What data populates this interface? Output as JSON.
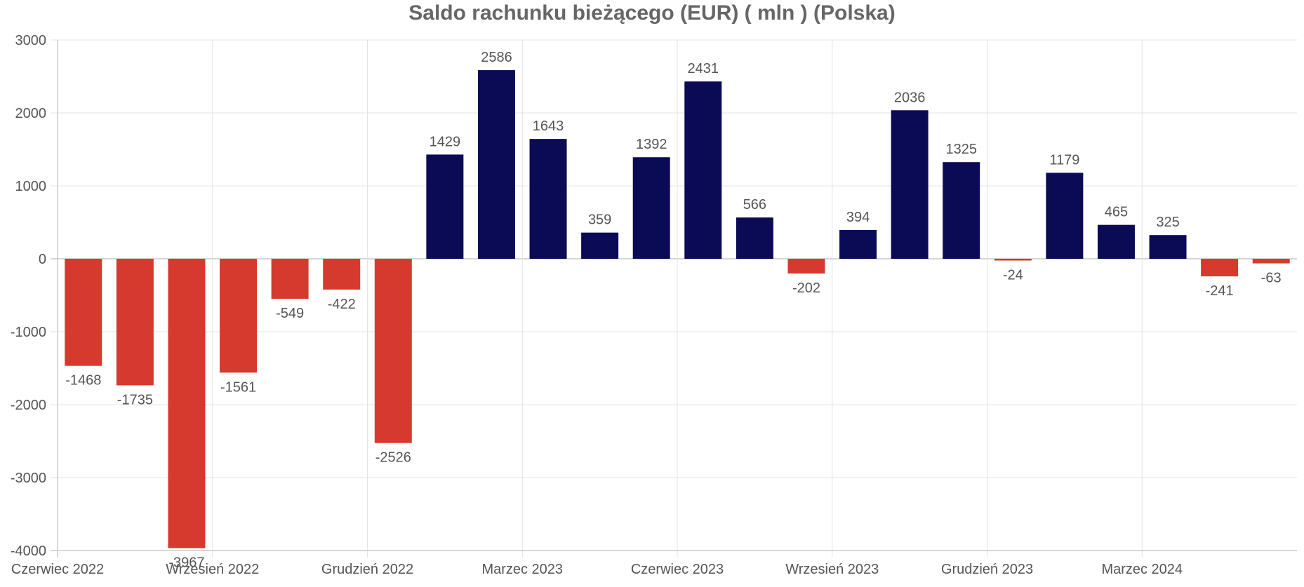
{
  "chart_data": {
    "type": "bar",
    "title": "Saldo rachunku bieżącego (EUR) ( mln ) (Polska)",
    "xlabel": "",
    "ylabel": "",
    "ylim": [
      -4000,
      3000
    ],
    "yticks": [
      3000,
      2000,
      1000,
      0,
      -1000,
      -2000,
      -3000,
      -4000
    ],
    "grid": true,
    "legend": "none",
    "categories": [
      "2022-06",
      "2022-07",
      "2022-08",
      "2022-09",
      "2022-10",
      "2022-11",
      "2022-12",
      "2023-01",
      "2023-02",
      "2023-03",
      "2023-04",
      "2023-05",
      "2023-06",
      "2023-07",
      "2023-08",
      "2023-09",
      "2023-10",
      "2023-11",
      "2023-12",
      "2024-01",
      "2024-02",
      "2024-03",
      "2024-04",
      "2024-05"
    ],
    "values": [
      -1468,
      -1735,
      -3967,
      -1561,
      -549,
      -422,
      -2526,
      1429,
      2586,
      1643,
      359,
      1392,
      2431,
      566,
      -202,
      394,
      2036,
      1325,
      -24,
      1179,
      465,
      325,
      -241,
      -63
    ],
    "x_tick_labels": [
      {
        "category": "2022-06",
        "label": "Czerwiec 2022"
      },
      {
        "category": "2022-09",
        "label": "Wrzesień 2022"
      },
      {
        "category": "2022-12",
        "label": "Grudzień 2022"
      },
      {
        "category": "2023-03",
        "label": "Marzec 2023"
      },
      {
        "category": "2023-06",
        "label": "Czerwiec 2023"
      },
      {
        "category": "2023-09",
        "label": "Wrzesień 2023"
      },
      {
        "category": "2023-12",
        "label": "Grudzień 2023"
      },
      {
        "category": "2024-03",
        "label": "Marzec 2024"
      }
    ],
    "colors": {
      "positive": "#0b0a55",
      "negative": "#d63a2f"
    }
  }
}
